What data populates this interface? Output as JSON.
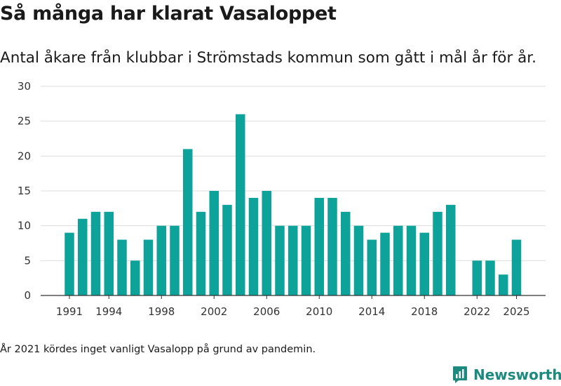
{
  "title": "Så många har klarat Vasaloppet",
  "subtitle": "Antal åkare från klubbar i Strömstads kommun som gått i mål år för år.",
  "footnote": "År 2021 kördes inget vanligt Vasalopp på grund av pandemin.",
  "brand": {
    "name": "Newsworthy",
    "color": "#1d8a80",
    "logo_icon": "bar-chart-icon"
  },
  "chart_data": {
    "type": "bar",
    "title": "Så många har klarat Vasaloppet",
    "xlabel": "",
    "ylabel": "",
    "ylim": [
      0,
      30
    ],
    "yticks": [
      0,
      5,
      10,
      15,
      20,
      25,
      30
    ],
    "xticks": [
      1991,
      1994,
      1998,
      2002,
      2006,
      2010,
      2014,
      2018,
      2022,
      2025
    ],
    "bar_color": "#0ea39a",
    "categories": [
      1991,
      1992,
      1993,
      1994,
      1995,
      1996,
      1997,
      1998,
      1999,
      2000,
      2001,
      2002,
      2003,
      2004,
      2005,
      2006,
      2007,
      2008,
      2009,
      2010,
      2011,
      2012,
      2013,
      2014,
      2015,
      2016,
      2017,
      2018,
      2019,
      2020,
      2021,
      2022,
      2023,
      2024,
      2025
    ],
    "values": [
      9,
      11,
      12,
      12,
      8,
      5,
      8,
      10,
      10,
      21,
      12,
      15,
      13,
      26,
      14,
      15,
      10,
      10,
      10,
      14,
      14,
      12,
      10,
      8,
      9,
      10,
      10,
      9,
      12,
      13,
      null,
      5,
      5,
      3,
      8
    ],
    "grid": true,
    "legend": "none"
  }
}
